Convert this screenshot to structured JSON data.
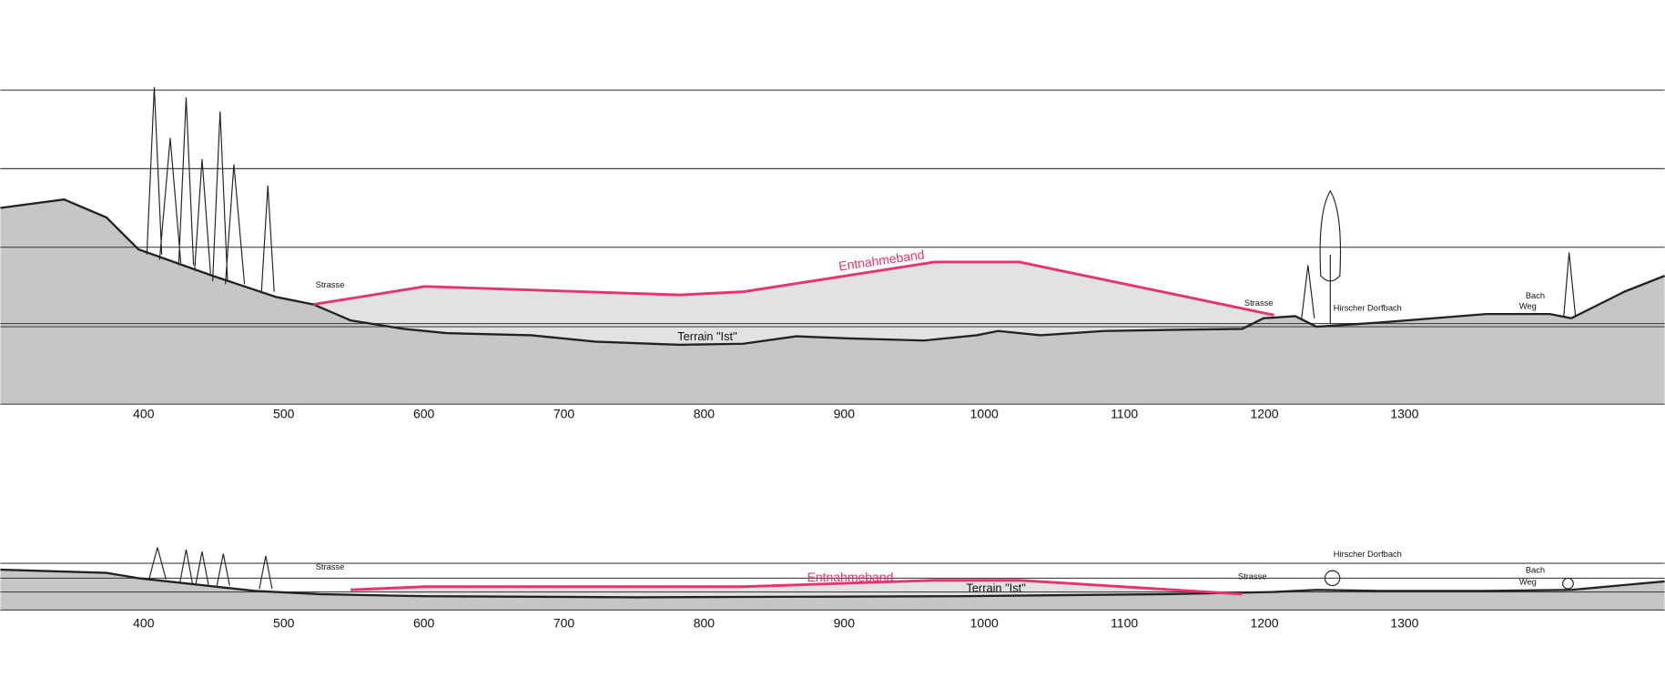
{
  "top_profile": {
    "x_labels": [
      400,
      500,
      600,
      700,
      800,
      900,
      1000,
      1100,
      1200,
      1300
    ],
    "labels": {
      "band": "Entnahmeband",
      "terrain": "Terrain \"Ist\"",
      "road": "Strasse",
      "road_right": "Strasse",
      "stream": "Hirscher Dorfbach",
      "brook": "Bach",
      "path": "Weg"
    }
  },
  "bottom_profile": {
    "x_labels": [
      400,
      500,
      600,
      700,
      800,
      900,
      1000,
      1100,
      1200,
      1300
    ],
    "labels": {
      "band": "Entnahmeband",
      "terrain": "Terrain \"Ist\"",
      "road": "Strasse",
      "road_right": "Strasse",
      "stream": "Hirscher Dorfbach",
      "brook": "Bach",
      "path": "Weg"
    }
  }
}
